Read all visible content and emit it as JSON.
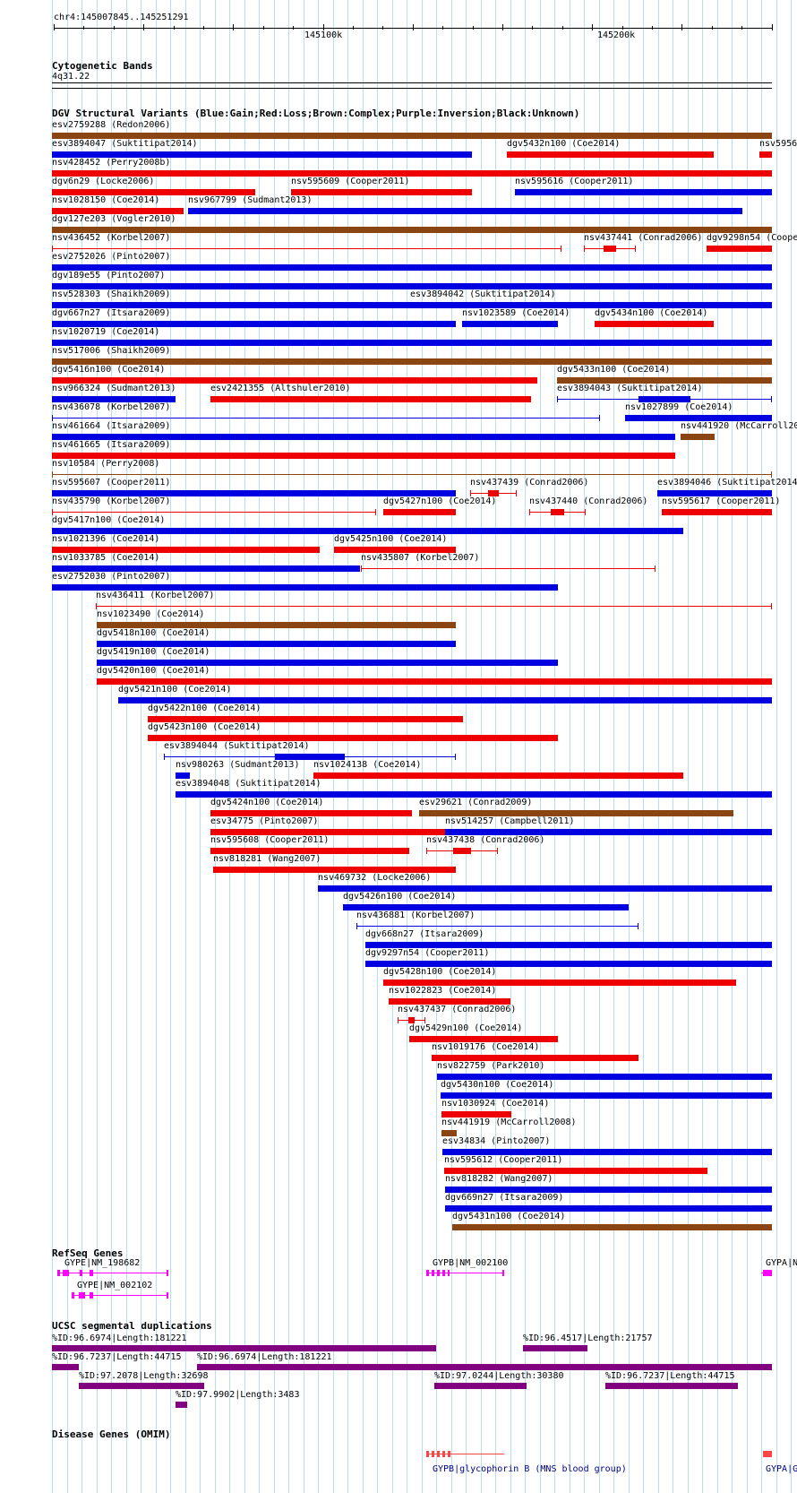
{
  "ruler": {
    "coords": "chr4:145007845..145251291",
    "ticks": [
      "145100k",
      "145200k"
    ]
  },
  "cyto": {
    "title": "Cytogenetic Bands",
    "band": "4q31.22"
  },
  "dgv": {
    "title": "DGV Structural Variants (Blue:Gain;Red:Loss;Brown:Complex;Purple:Inversion;Black:Unknown)",
    "colors": {
      "gain": "#0000e0",
      "loss": "#ee0000",
      "complex": "#8b4513"
    },
    "labels": [
      "esv2759288 (Redon2006)",
      "esv3894047 (Suktitipat2014)",
      "dgv5432n100 (Coe2014)",
      "nsv5956",
      "nsv428452 (Perry2008b)",
      "dgv6n29 (Locke2006)",
      "nsv595609 (Cooper2011)",
      "nsv595616 (Cooper2011)",
      "nsv1028150 (Coe2014)",
      "nsv967799 (Sudmant2013)",
      "dgv127e203 (Vogler2010)",
      "nsv436452 (Korbel2007)",
      "nsv437441 (Conrad2006)",
      "dgv9298n54 (Coope",
      "esv2752026 (Pinto2007)",
      "dgv189e55 (Pinto2007)",
      "nsv528303 (Shaikh2009)",
      "esv3894042 (Suktitipat2014)",
      "dgv667n27 (Itsara2009)",
      "nsv1023589 (Coe2014)",
      "dgv5434n100 (Coe2014)",
      "nsv1020719 (Coe2014)",
      "nsv517006 (Shaikh2009)",
      "dgv5416n100 (Coe2014)",
      "dgv5433n100 (Coe2014)",
      "nsv966324 (Sudmant2013)",
      "esv2421355 (Altshuler2010)",
      "esv3894043 (Suktitipat2014)",
      "nsv436078 (Korbel2007)",
      "nsv1027899 (Coe2014)",
      "nsv461664 (Itsara2009)",
      "nsv441920 (McCarroll20",
      "nsv461665 (Itsara2009)",
      "nsv10584 (Perry2008)",
      "nsv595607 (Cooper2011)",
      "nsv437439 (Conrad2006)",
      "esv3894046 (Suktitipat2014",
      "nsv435790 (Korbel2007)",
      "dgv5427n100 (Coe2014)",
      "nsv437440 (Conrad2006)",
      "nsv595617 (Cooper2011)",
      "dgv5417n100 (Coe2014)",
      "nsv1021396 (Coe2014)",
      "dgv5425n100 (Coe2014)",
      "nsv1033785 (Coe2014)",
      "nsv435807 (Korbel2007)",
      "esv2752030 (Pinto2007)",
      "nsv436411 (Korbel2007)",
      "nsv1023490 (Coe2014)",
      "dgv5418n100 (Coe2014)",
      "dgv5419n100 (Coe2014)",
      "dgv5420n100 (Coe2014)",
      "dgv5421n100 (Coe2014)",
      "dgv5422n100 (Coe2014)",
      "dgv5423n100 (Coe2014)",
      "esv3894044 (Suktitipat2014)",
      "nsv980263 (Sudmant2013)",
      "nsv1024138 (Coe2014)",
      "esv3894048 (Suktitipat2014)",
      "dgv5424n100 (Coe2014)",
      "esv29621 (Conrad2009)",
      "esv34775 (Pinto2007)",
      "nsv514257 (Campbell2011)",
      "nsv595608 (Cooper2011)",
      "nsv437438 (Conrad2006)",
      "nsv818281 (Wang2007)",
      "nsv469732 (Locke2006)",
      "dgv5426n100 (Coe2014)",
      "nsv436881 (Korbel2007)",
      "dgv668n27 (Itsara2009)",
      "dgv9297n54 (Cooper2011)",
      "dgv5428n100 (Coe2014)",
      "nsv1022823 (Coe2014)",
      "nsv437437 (Conrad2006)",
      "dgv5429n100 (Coe2014)",
      "nsv1019176 (Coe2014)",
      "nsv822759 (Park2010)",
      "dgv5430n100 (Coe2014)",
      "nsv1030924 (Coe2014)",
      "nsv441919 (McCarroll2008)",
      "esv34834 (Pinto2007)",
      "nsv595612 (Cooper2011)",
      "nsv818282 (Wang2007)",
      "dgv669n27 (Itsara2009)",
      "dgv5431n100 (Coe2014)"
    ]
  },
  "refseq": {
    "title": "RefSeq Genes",
    "labels": [
      "GYPE|NM_198682",
      "GYPE|NM_002102",
      "GYPB|NM_002100",
      "GYPA|N"
    ],
    "color": "#ff00ff"
  },
  "segdup": {
    "title": "UCSC segmental duplications",
    "labels": [
      "%ID:96.6974|Length:181221",
      "%ID:96.4517|Length:21757",
      "%ID:96.7237|Length:44715",
      "%ID:96.6974|Length:181221",
      "%ID:97.2078|Length:32698",
      "%ID:97.0244|Length:30380",
      "%ID:96.7237|Length:44715",
      "%ID:97.9902|Length:3483"
    ],
    "color": "#800080"
  },
  "omim": {
    "title": "Disease Genes (OMIM)",
    "labels": [
      "GYPB|glycophorin B (MNS blood group)",
      "GYPA|G"
    ],
    "color": "#ff4444"
  }
}
